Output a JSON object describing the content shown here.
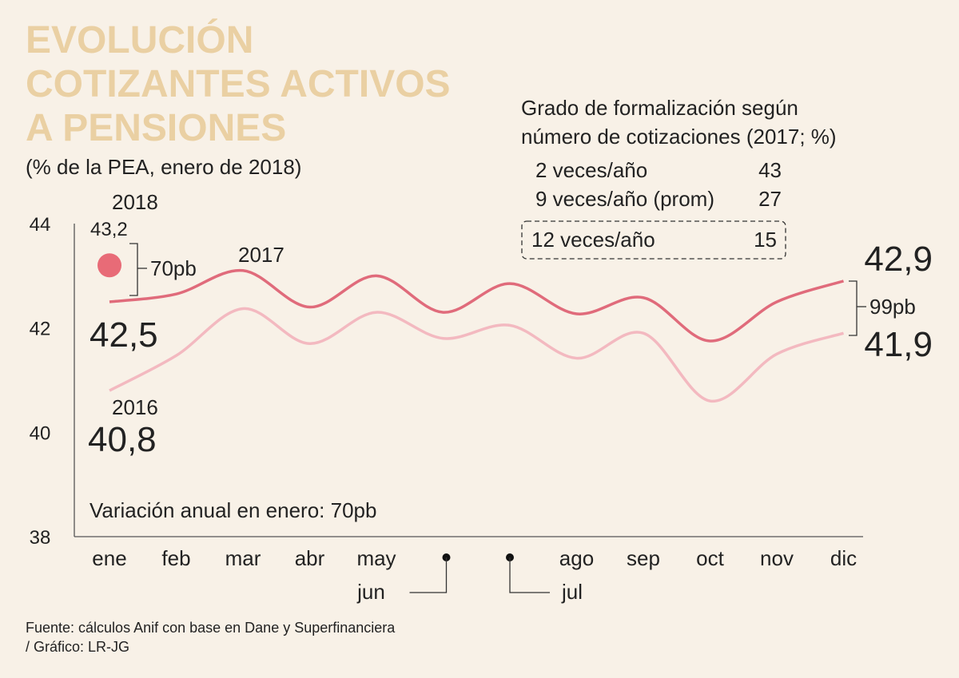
{
  "chart_data": {
    "type": "line",
    "title": [
      "EVOLUCIÓN",
      "COTIZANTES ACTIVOS",
      "A PENSIONES"
    ],
    "subtitle": "(% de la PEA, enero de 2018)",
    "categories": [
      "ene",
      "feb",
      "mar",
      "abr",
      "may",
      "jun",
      "jul",
      "ago",
      "sep",
      "oct",
      "nov",
      "dic"
    ],
    "series": [
      {
        "name": "2017",
        "color": "#e06b7b",
        "values": [
          42.5,
          42.65,
          43.1,
          42.4,
          43.0,
          42.3,
          42.85,
          42.27,
          42.58,
          41.75,
          42.5,
          42.9
        ],
        "value_labels": [
          "42,5",
          null,
          null,
          null,
          null,
          null,
          null,
          null,
          null,
          null,
          null,
          "42,9"
        ]
      },
      {
        "name": "2016",
        "color": "#f3b9c0",
        "values": [
          40.8,
          41.47,
          42.37,
          41.7,
          42.3,
          41.8,
          42.05,
          41.42,
          41.9,
          40.6,
          41.5,
          41.9
        ],
        "value_labels": [
          "40,8",
          null,
          null,
          null,
          null,
          null,
          null,
          null,
          null,
          null,
          null,
          "41,9"
        ]
      },
      {
        "name": "2018",
        "color": "#e86b77",
        "values": [
          43.2,
          null,
          null,
          null,
          null,
          null,
          null,
          null,
          null,
          null,
          null,
          null
        ],
        "value_labels": [
          "43,2",
          null,
          null,
          null,
          null,
          null,
          null,
          null,
          null,
          null,
          null,
          null
        ]
      }
    ],
    "ylim": [
      38,
      44
    ],
    "yticks": [
      38,
      40,
      42,
      44
    ],
    "annotations": {
      "gap_jan": "70pb",
      "gap_dec": "99pb",
      "note": "Variación anual en enero: 70pb"
    },
    "inset": {
      "title": [
        "Grado de formalización según",
        "número de cotizaciones (2017; %)"
      ],
      "rows": [
        [
          "2 veces/año",
          "43"
        ],
        [
          "9 veces/año (prom)",
          "27"
        ],
        [
          "12 veces/año",
          "15"
        ]
      ]
    },
    "source": [
      "Fuente: cálculos Anif con base en Dane y Superfinanciera",
      "/ Gráfico: LR-JG"
    ]
  }
}
